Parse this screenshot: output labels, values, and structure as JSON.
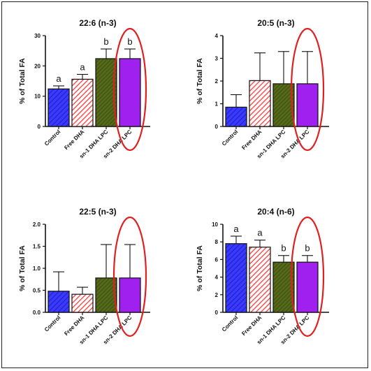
{
  "chart_data": [
    {
      "type": "bar",
      "title": "22:6 (n-3)",
      "ylabel": "% of Total FA",
      "categories": [
        "Control",
        "Free DHA",
        "sn-1 DHA LPC",
        "sn-2 DHA LPC"
      ],
      "values": [
        12.4,
        15.6,
        22.4,
        22.4
      ],
      "errors": [
        1.0,
        1.6,
        3.2,
        3.2
      ],
      "significance": [
        "a",
        "a",
        "b",
        "b"
      ],
      "ylim": [
        0,
        30
      ],
      "yticks": [
        "0",
        "10",
        "20",
        "30"
      ],
      "highlight_index": 3
    },
    {
      "type": "bar",
      "title": "20:5 (n-3)",
      "ylabel": "% of Total FA",
      "categories": [
        "Control",
        "Free DHA",
        "sn-1 DHA LPC",
        "sn-2 DHA LPC"
      ],
      "values": [
        0.85,
        2.02,
        1.88,
        1.88
      ],
      "errors": [
        0.55,
        1.22,
        1.42,
        1.42
      ],
      "significance": [
        "",
        "",
        "",
        ""
      ],
      "ylim": [
        0,
        4
      ],
      "yticks": [
        "0",
        "1",
        "2",
        "3",
        "4"
      ],
      "highlight_index": 3
    },
    {
      "type": "bar",
      "title": "22:5 (n-3)",
      "ylabel": "% of Total FA",
      "categories": [
        "Control",
        "Free DHA",
        "sn-1 DHA LPC",
        "sn-2 DHA LPC"
      ],
      "values": [
        0.48,
        0.41,
        0.78,
        0.78
      ],
      "errors": [
        0.44,
        0.16,
        0.76,
        0.76
      ],
      "significance": [
        "",
        "",
        "",
        ""
      ],
      "ylim": [
        0,
        2.0
      ],
      "yticks": [
        "0.0",
        "0.5",
        "1.0",
        "1.5",
        "2.0"
      ],
      "highlight_index": 3
    },
    {
      "type": "bar",
      "title": "20:4 (n-6)",
      "ylabel": "% of Total FA",
      "categories": [
        "Control",
        "Free DHA",
        "sn-1 DHA LPC",
        "sn-2 DHA LPC"
      ],
      "values": [
        7.8,
        7.4,
        5.7,
        5.7
      ],
      "errors": [
        0.85,
        0.8,
        0.75,
        0.75
      ],
      "significance": [
        "a",
        "a",
        "b",
        "b"
      ],
      "ylim": [
        0,
        10
      ],
      "yticks": [
        "0",
        "2",
        "4",
        "6",
        "8",
        "10"
      ],
      "highlight_index": 3
    }
  ],
  "colors": {
    "control": "#3a3aff",
    "free_dha": "#ff3b3b",
    "sn1": "#4a5d12",
    "sn2": "#a020f0",
    "highlight_ellipse": "#e02020",
    "axis": "#111111"
  }
}
